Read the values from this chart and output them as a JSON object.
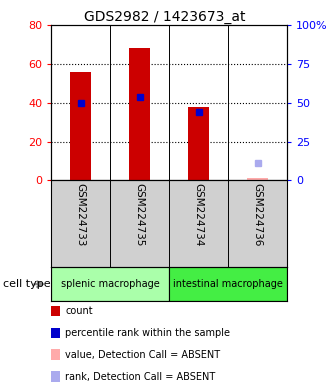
{
  "title": "GDS2982 / 1423673_at",
  "samples": [
    "GSM224733",
    "GSM224735",
    "GSM224734",
    "GSM224736"
  ],
  "count_values": [
    56,
    68,
    38,
    1.5
  ],
  "percentile_values": [
    40,
    43,
    35,
    null
  ],
  "absent_rank": [
    null,
    null,
    null,
    9
  ],
  "detection_absent": [
    false,
    false,
    false,
    true
  ],
  "left_ylim": [
    0,
    80
  ],
  "right_ylim": [
    0,
    100
  ],
  "left_yticks": [
    0,
    20,
    40,
    60,
    80
  ],
  "right_yticks": [
    0,
    25,
    50,
    75,
    100
  ],
  "right_yticklabels": [
    "0",
    "25",
    "50",
    "75",
    "100%"
  ],
  "bar_color_present": "#cc0000",
  "bar_color_absent": "#ffaaaa",
  "rank_color_present": "#0000cc",
  "rank_color_absent": "#aaaaee",
  "splenic_cell_bg": "#aaffaa",
  "intestinal_cell_bg": "#44ee44",
  "bar_width": 0.35,
  "dotted_grid": [
    20,
    40,
    60
  ],
  "legend_items": [
    {
      "color": "#cc0000",
      "label": "count"
    },
    {
      "color": "#0000cc",
      "label": "percentile rank within the sample"
    },
    {
      "color": "#ffaaaa",
      "label": "value, Detection Call = ABSENT"
    },
    {
      "color": "#aaaaee",
      "label": "rank, Detection Call = ABSENT"
    }
  ]
}
